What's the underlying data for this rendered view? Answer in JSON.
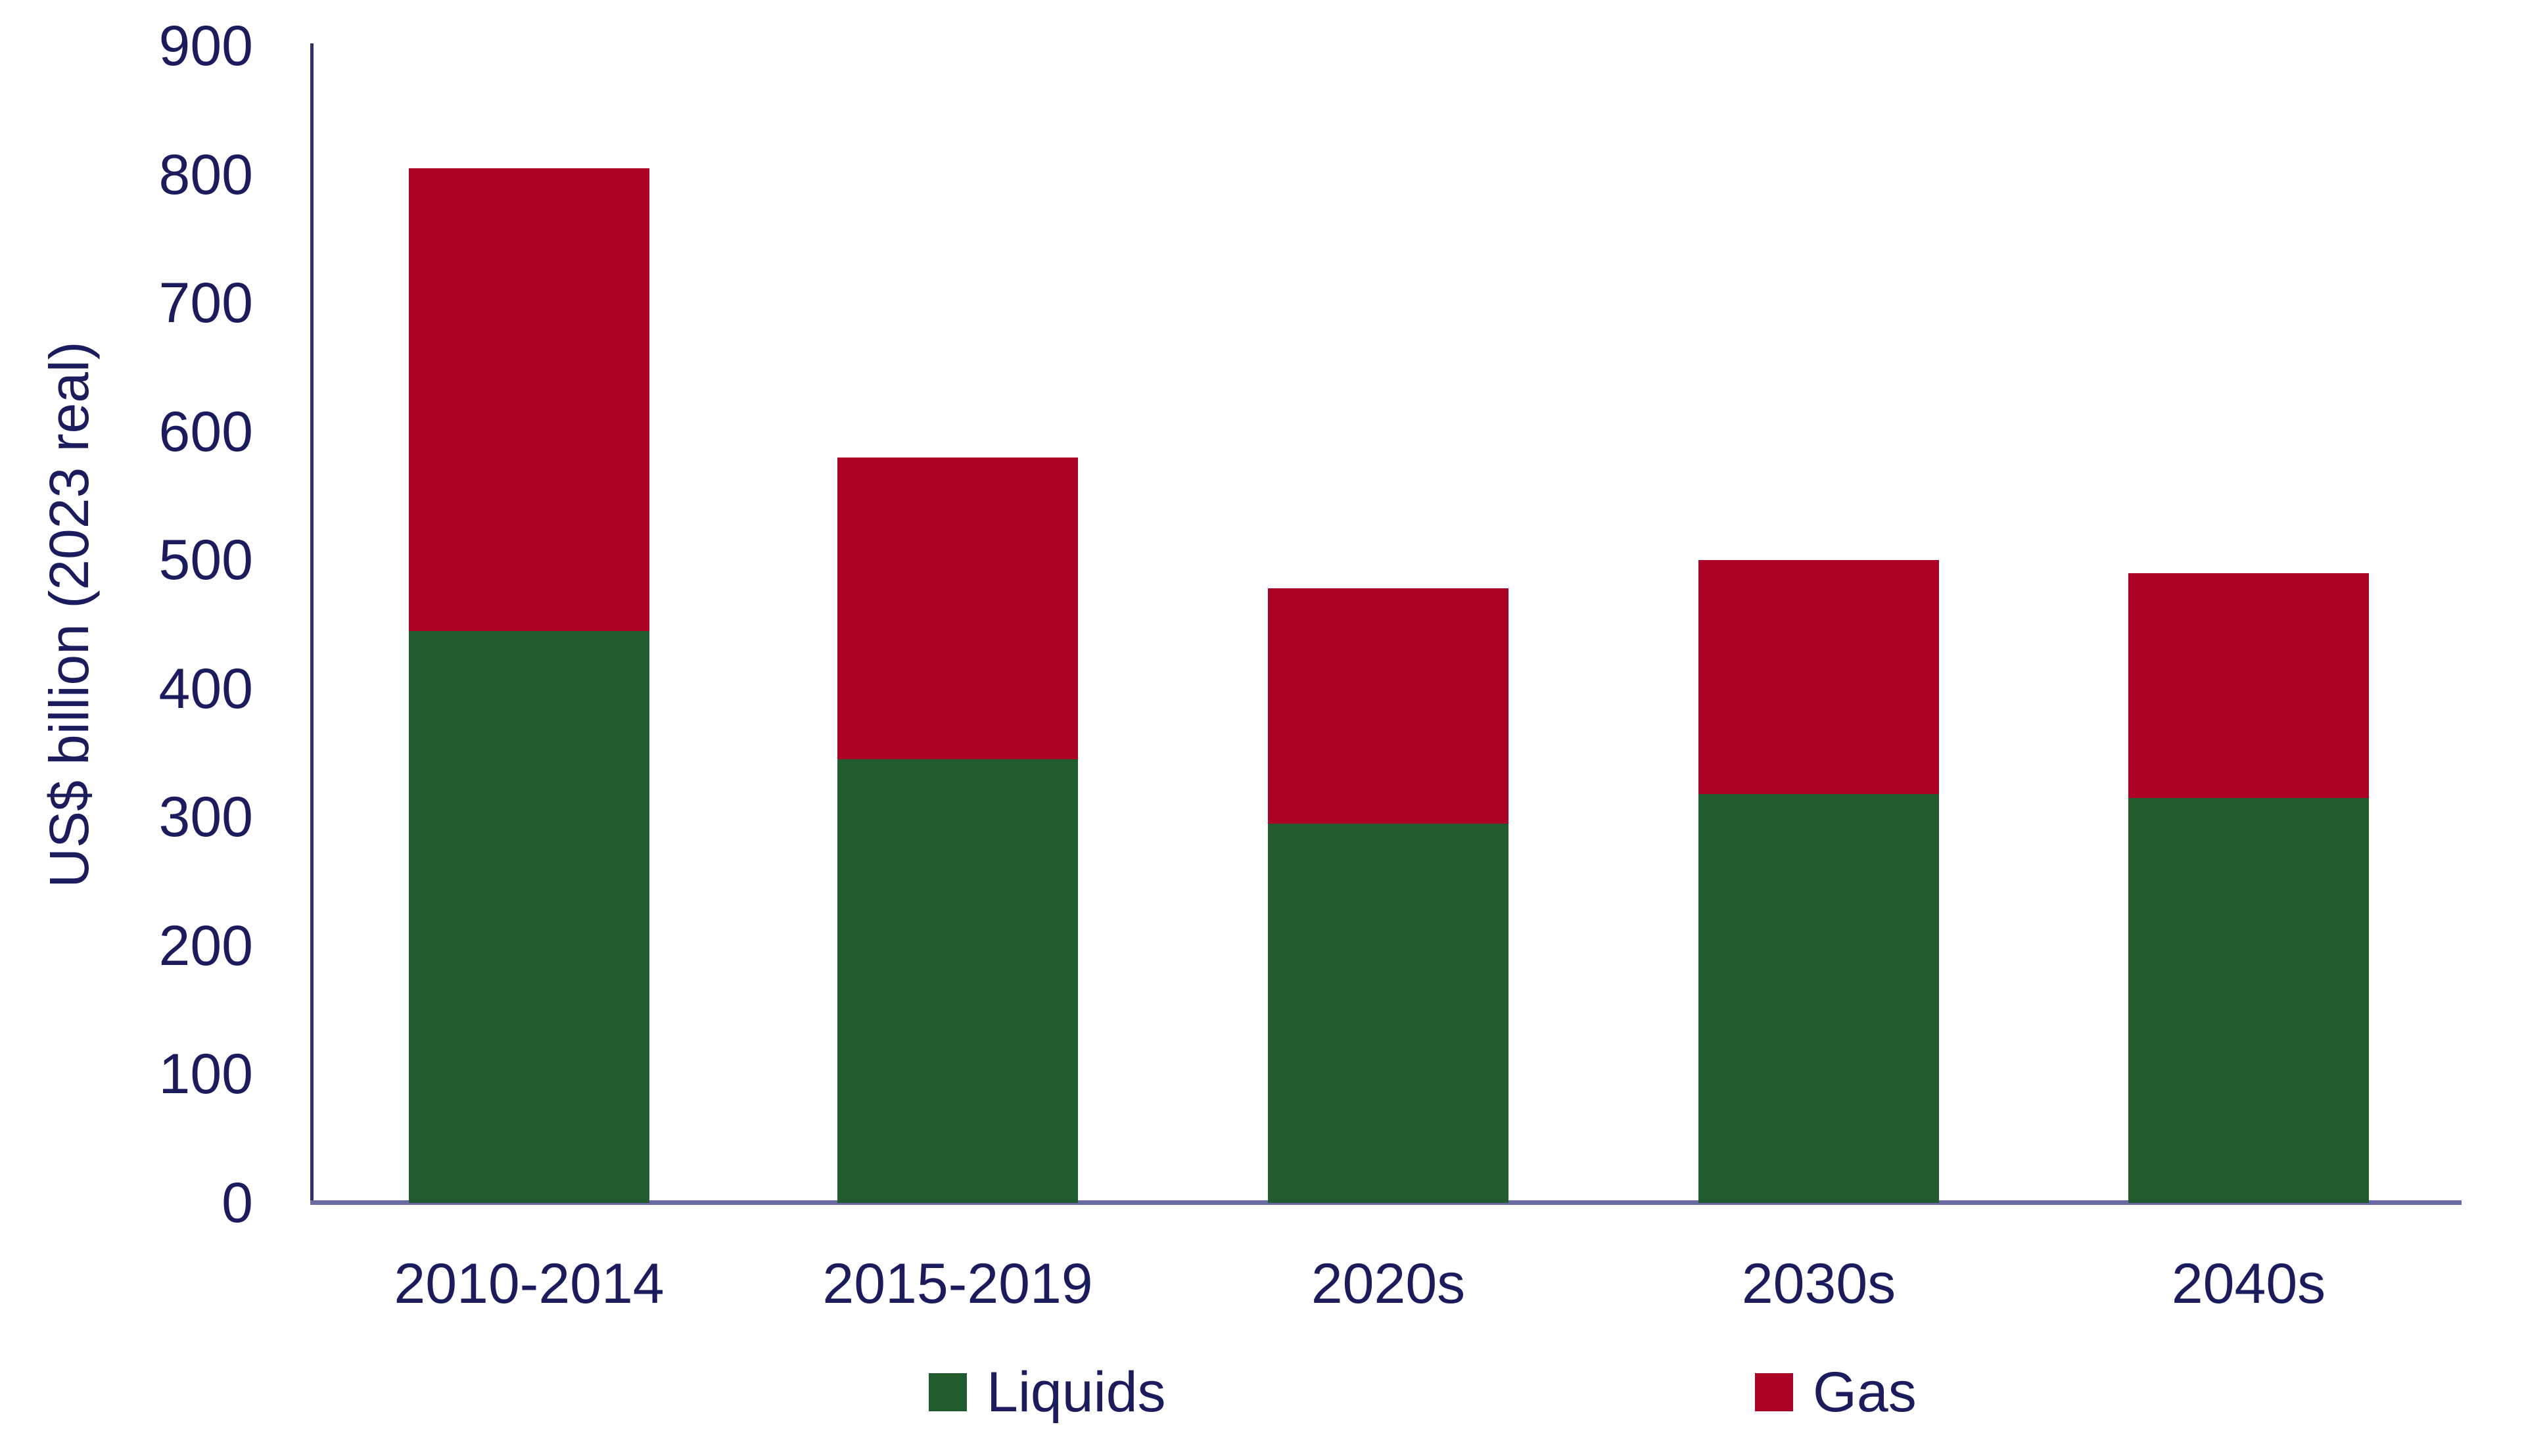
{
  "colors": {
    "text": "#1A1C5E",
    "axis": "#30306B",
    "baseline": "#6A6AA2",
    "background": "#FFFFFF",
    "liquids": "#205C2E",
    "gas": "#AB0226"
  },
  "y_axis": {
    "title": "US$ billion (2023 real)"
  },
  "legend": {
    "items": [
      {
        "label": "Liquids",
        "color": "#205C2E"
      },
      {
        "label": "Gas",
        "color": "#AB0226"
      }
    ]
  },
  "chart_data": {
    "type": "bar",
    "stacked": true,
    "title": "",
    "xlabel": "",
    "ylabel": "US$ billion (2023 real)",
    "categories": [
      "2010-2014",
      "2015-2019",
      "2020s",
      "2030s",
      "2040s"
    ],
    "series": [
      {
        "name": "Liquids",
        "color": "#205C2E",
        "values": [
          445,
          345,
          295,
          318,
          315
        ]
      },
      {
        "name": "Gas",
        "color": "#AB0226",
        "values": [
          360,
          235,
          183,
          182,
          175
        ]
      }
    ],
    "totals": [
      805,
      580,
      478,
      500,
      490
    ],
    "ylim": [
      0,
      900
    ],
    "yticks": [
      0,
      100,
      200,
      300,
      400,
      500,
      600,
      700,
      800,
      900
    ],
    "grid": false,
    "legend_position": "bottom"
  }
}
